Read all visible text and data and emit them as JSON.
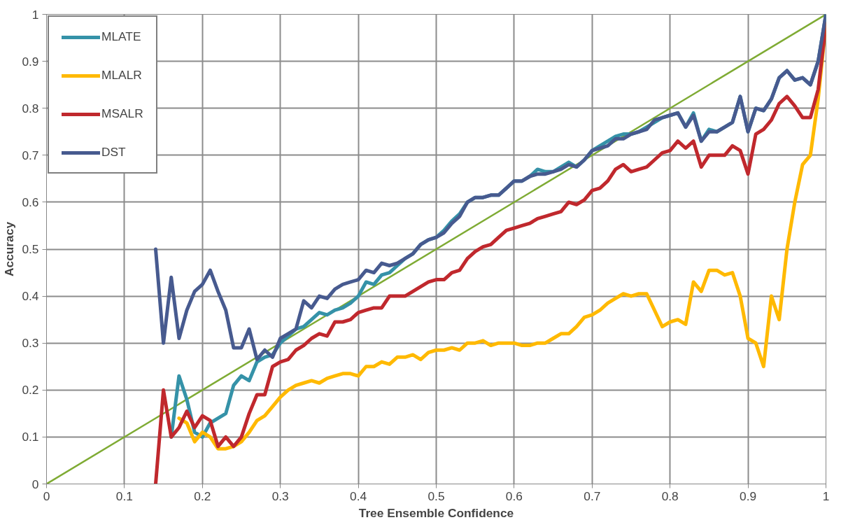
{
  "chart_data": {
    "type": "line",
    "xlabel": "Tree Ensemble Confidence",
    "ylabel": "Accuracy",
    "xlim": [
      0,
      1
    ],
    "ylim": [
      0,
      1
    ],
    "xticks": [
      0,
      0.1,
      0.2,
      0.3,
      0.4,
      0.5,
      0.6,
      0.7,
      0.8,
      0.9,
      1
    ],
    "yticks": [
      0,
      0.1,
      0.2,
      0.3,
      0.4,
      0.5,
      0.6,
      0.7,
      0.8,
      0.9,
      1
    ],
    "grid": true,
    "legend": "top left",
    "marker": "none",
    "line_style": "solid",
    "x": [
      0.14,
      0.15,
      0.16,
      0.17,
      0.18,
      0.19,
      0.2,
      0.21,
      0.22,
      0.23,
      0.24,
      0.25,
      0.26,
      0.27,
      0.28,
      0.29,
      0.3,
      0.31,
      0.32,
      0.33,
      0.34,
      0.35,
      0.36,
      0.37,
      0.38,
      0.39,
      0.4,
      0.41,
      0.42,
      0.43,
      0.44,
      0.45,
      0.46,
      0.47,
      0.48,
      0.49,
      0.5,
      0.51,
      0.52,
      0.53,
      0.54,
      0.55,
      0.56,
      0.57,
      0.58,
      0.59,
      0.6,
      0.61,
      0.62,
      0.63,
      0.64,
      0.65,
      0.66,
      0.67,
      0.68,
      0.69,
      0.7,
      0.71,
      0.72,
      0.73,
      0.74,
      0.75,
      0.76,
      0.77,
      0.78,
      0.79,
      0.8,
      0.81,
      0.82,
      0.83,
      0.84,
      0.85,
      0.86,
      0.87,
      0.88,
      0.89,
      0.9,
      0.91,
      0.92,
      0.93,
      0.94,
      0.95,
      0.96,
      0.97,
      0.98,
      0.99,
      1.0
    ],
    "series": [
      {
        "x": [
          0,
          1
        ],
        "values": [
          0,
          1
        ],
        "color": "#7fab34"
      },
      {
        "name": "MLATE",
        "color": "#3592a8",
        "values": [
          null,
          null,
          0.1,
          0.23,
          0.18,
          0.11,
          0.1,
          0.13,
          0.14,
          0.15,
          0.21,
          0.23,
          0.22,
          0.26,
          0.27,
          0.275,
          0.3,
          0.315,
          0.33,
          0.335,
          0.35,
          0.365,
          0.36,
          0.37,
          0.375,
          0.385,
          0.4,
          0.43,
          0.425,
          0.445,
          0.45,
          0.465,
          0.48,
          0.49,
          0.51,
          0.52,
          0.525,
          0.54,
          0.56,
          0.575,
          0.6,
          0.61,
          0.61,
          0.615,
          0.615,
          0.63,
          0.645,
          0.645,
          0.655,
          0.67,
          0.665,
          0.665,
          0.675,
          0.685,
          0.675,
          0.69,
          0.71,
          0.72,
          0.73,
          0.74,
          0.745,
          0.745,
          0.75,
          0.76,
          0.77,
          0.78,
          0.785,
          0.79,
          0.76,
          0.79,
          0.73,
          0.755,
          0.75,
          0.76,
          0.77,
          0.825,
          0.75,
          0.8,
          0.795,
          0.82,
          0.865,
          0.88,
          0.86,
          0.865,
          0.85,
          0.9,
          1.0
        ]
      },
      {
        "name": "MLALR",
        "color": "#ffb900",
        "values": [
          null,
          null,
          null,
          0.14,
          0.13,
          0.09,
          0.11,
          0.1,
          0.075,
          0.075,
          0.08,
          0.09,
          0.11,
          0.135,
          0.145,
          0.165,
          0.185,
          0.2,
          0.21,
          0.215,
          0.22,
          0.215,
          0.225,
          0.23,
          0.235,
          0.235,
          0.23,
          0.25,
          0.25,
          0.26,
          0.255,
          0.27,
          0.27,
          0.275,
          0.265,
          0.28,
          0.285,
          0.285,
          0.29,
          0.285,
          0.3,
          0.3,
          0.305,
          0.295,
          0.3,
          0.3,
          0.3,
          0.295,
          0.295,
          0.3,
          0.3,
          0.31,
          0.32,
          0.32,
          0.335,
          0.355,
          0.36,
          0.37,
          0.385,
          0.395,
          0.405,
          0.4,
          0.405,
          0.405,
          0.37,
          0.335,
          0.345,
          0.35,
          0.34,
          0.43,
          0.41,
          0.455,
          0.455,
          0.445,
          0.45,
          0.4,
          0.31,
          0.3,
          0.25,
          0.4,
          0.35,
          0.5,
          0.6,
          0.68,
          0.7,
          0.82,
          0.98
        ]
      },
      {
        "name": "MSALR",
        "color": "#c0282d",
        "values": [
          0.0,
          0.2,
          0.1,
          0.12,
          0.155,
          0.12,
          0.145,
          0.135,
          0.08,
          0.1,
          0.08,
          0.1,
          0.15,
          0.19,
          0.19,
          0.25,
          0.26,
          0.265,
          0.285,
          0.295,
          0.31,
          0.32,
          0.315,
          0.345,
          0.345,
          0.35,
          0.365,
          0.37,
          0.375,
          0.375,
          0.4,
          0.4,
          0.4,
          0.41,
          0.42,
          0.43,
          0.435,
          0.435,
          0.45,
          0.455,
          0.48,
          0.495,
          0.505,
          0.51,
          0.525,
          0.54,
          0.545,
          0.55,
          0.555,
          0.565,
          0.57,
          0.575,
          0.58,
          0.6,
          0.595,
          0.605,
          0.625,
          0.63,
          0.645,
          0.67,
          0.68,
          0.665,
          0.67,
          0.675,
          0.69,
          0.705,
          0.71,
          0.73,
          0.715,
          0.73,
          0.675,
          0.7,
          0.7,
          0.7,
          0.72,
          0.71,
          0.66,
          0.745,
          0.755,
          0.775,
          0.81,
          0.825,
          0.805,
          0.78,
          0.78,
          0.84,
          0.98
        ]
      },
      {
        "name": "DST",
        "color": "#475a8f",
        "values": [
          0.5,
          0.3,
          0.44,
          0.31,
          0.37,
          0.41,
          0.425,
          0.455,
          0.41,
          0.37,
          0.29,
          0.29,
          0.33,
          0.265,
          0.285,
          0.27,
          0.31,
          0.32,
          0.33,
          0.39,
          0.375,
          0.4,
          0.395,
          0.415,
          0.425,
          0.43,
          0.435,
          0.455,
          0.45,
          0.47,
          0.465,
          0.47,
          0.48,
          0.49,
          0.51,
          0.52,
          0.525,
          0.535,
          0.555,
          0.57,
          0.6,
          0.61,
          0.61,
          0.615,
          0.615,
          0.63,
          0.645,
          0.645,
          0.655,
          0.66,
          0.66,
          0.665,
          0.67,
          0.68,
          0.675,
          0.69,
          0.71,
          0.715,
          0.72,
          0.735,
          0.735,
          0.745,
          0.75,
          0.755,
          0.775,
          0.78,
          0.785,
          0.79,
          0.76,
          0.785,
          0.73,
          0.75,
          0.75,
          0.76,
          0.77,
          0.825,
          0.75,
          0.8,
          0.795,
          0.82,
          0.865,
          0.88,
          0.86,
          0.865,
          0.85,
          0.9,
          1.0
        ]
      }
    ]
  }
}
